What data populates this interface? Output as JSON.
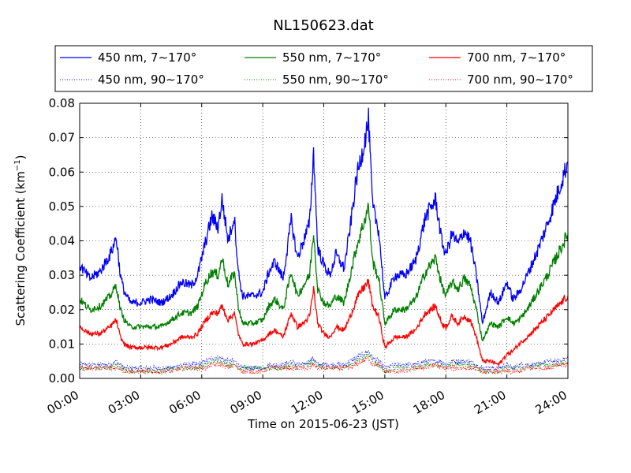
{
  "chart_data": {
    "type": "line",
    "title": "NL150623.dat",
    "xlabel": "Time on 2015-06-23 (JST)",
    "ylabel": "Scattering Coefficient (km",
    "ylabel_exp": "−1",
    "ylabel_close": ")",
    "xlim": [
      0,
      24
    ],
    "ylim": [
      0,
      0.08
    ],
    "x_unit": "hours",
    "grid": true,
    "legend_position": "top-outside",
    "x_ticks": [
      "00:00",
      "03:00",
      "06:00",
      "09:00",
      "12:00",
      "15:00",
      "18:00",
      "21:00",
      "24:00"
    ],
    "y_ticks": [
      "0.00",
      "0.01",
      "0.02",
      "0.03",
      "0.04",
      "0.05",
      "0.06",
      "0.07",
      "0.08"
    ],
    "x": [
      0,
      0.5,
      1,
      1.5,
      1.8,
      2,
      2.2,
      2.5,
      3,
      3.5,
      4,
      4.5,
      5,
      5.5,
      5.8,
      6.2,
      6.5,
      6.8,
      7,
      7.3,
      7.6,
      7.8,
      8,
      8.5,
      9,
      9.3,
      9.6,
      10,
      10.4,
      10.7,
      11,
      11.3,
      11.5,
      11.7,
      12,
      12.3,
      12.6,
      13,
      13.3,
      13.6,
      13.9,
      14.2,
      14.4,
      14.7,
      15,
      15.5,
      16,
      16.5,
      17,
      17.5,
      17.8,
      18,
      18.3,
      18.6,
      18.9,
      19.2,
      19.5,
      19.8,
      20.2,
      20.6,
      21,
      21.3,
      21.6,
      22,
      22.5,
      23,
      23.5,
      24
    ],
    "series": [
      {
        "name": "450 nm, 7∼170°",
        "color": "#0000ff",
        "style": "solid",
        "values": [
          0.033,
          0.029,
          0.031,
          0.036,
          0.041,
          0.03,
          0.025,
          0.022,
          0.022,
          0.023,
          0.022,
          0.024,
          0.028,
          0.027,
          0.03,
          0.04,
          0.047,
          0.044,
          0.052,
          0.04,
          0.047,
          0.031,
          0.024,
          0.024,
          0.025,
          0.031,
          0.034,
          0.029,
          0.046,
          0.035,
          0.04,
          0.045,
          0.066,
          0.038,
          0.033,
          0.03,
          0.036,
          0.032,
          0.044,
          0.058,
          0.066,
          0.075,
          0.05,
          0.043,
          0.023,
          0.03,
          0.03,
          0.034,
          0.047,
          0.052,
          0.04,
          0.036,
          0.042,
          0.039,
          0.043,
          0.04,
          0.03,
          0.016,
          0.025,
          0.022,
          0.028,
          0.023,
          0.025,
          0.03,
          0.037,
          0.045,
          0.054,
          0.063
        ]
      },
      {
        "name": "550 nm, 7∼170°",
        "color": "#008000",
        "style": "solid",
        "values": [
          0.023,
          0.02,
          0.021,
          0.024,
          0.027,
          0.02,
          0.017,
          0.015,
          0.015,
          0.015,
          0.015,
          0.017,
          0.019,
          0.019,
          0.021,
          0.028,
          0.031,
          0.03,
          0.035,
          0.027,
          0.031,
          0.021,
          0.016,
          0.016,
          0.017,
          0.021,
          0.023,
          0.02,
          0.031,
          0.024,
          0.027,
          0.03,
          0.043,
          0.026,
          0.022,
          0.021,
          0.024,
          0.022,
          0.03,
          0.038,
          0.044,
          0.05,
          0.034,
          0.029,
          0.016,
          0.02,
          0.02,
          0.023,
          0.031,
          0.035,
          0.027,
          0.024,
          0.028,
          0.026,
          0.029,
          0.027,
          0.02,
          0.011,
          0.016,
          0.015,
          0.018,
          0.016,
          0.017,
          0.02,
          0.025,
          0.03,
          0.036,
          0.042
        ]
      },
      {
        "name": "700 nm, 7∼170°",
        "color": "#ff0000",
        "style": "solid",
        "values": [
          0.015,
          0.013,
          0.013,
          0.015,
          0.017,
          0.012,
          0.01,
          0.009,
          0.009,
          0.009,
          0.009,
          0.01,
          0.012,
          0.012,
          0.013,
          0.017,
          0.019,
          0.019,
          0.021,
          0.017,
          0.019,
          0.013,
          0.01,
          0.01,
          0.011,
          0.013,
          0.014,
          0.012,
          0.019,
          0.015,
          0.016,
          0.018,
          0.026,
          0.016,
          0.013,
          0.012,
          0.015,
          0.014,
          0.018,
          0.023,
          0.026,
          0.028,
          0.021,
          0.018,
          0.009,
          0.012,
          0.012,
          0.014,
          0.019,
          0.021,
          0.016,
          0.015,
          0.018,
          0.016,
          0.018,
          0.017,
          0.012,
          0.005,
          0.005,
          0.004,
          0.007,
          0.008,
          0.01,
          0.012,
          0.015,
          0.018,
          0.021,
          0.024
        ]
      },
      {
        "name": "450 nm, 90∼170°",
        "color": "#0000ff",
        "style": "dotted",
        "values": [
          0.004,
          0.004,
          0.004,
          0.004,
          0.005,
          0.004,
          0.003,
          0.003,
          0.003,
          0.003,
          0.003,
          0.003,
          0.004,
          0.004,
          0.004,
          0.005,
          0.006,
          0.006,
          0.006,
          0.005,
          0.005,
          0.004,
          0.003,
          0.003,
          0.003,
          0.004,
          0.004,
          0.004,
          0.005,
          0.004,
          0.004,
          0.005,
          0.006,
          0.004,
          0.004,
          0.004,
          0.004,
          0.004,
          0.005,
          0.006,
          0.007,
          0.008,
          0.006,
          0.005,
          0.003,
          0.004,
          0.004,
          0.004,
          0.005,
          0.005,
          0.005,
          0.004,
          0.005,
          0.005,
          0.005,
          0.005,
          0.004,
          0.003,
          0.003,
          0.003,
          0.004,
          0.003,
          0.004,
          0.004,
          0.004,
          0.005,
          0.005,
          0.006
        ]
      },
      {
        "name": "550 nm, 90∼170°",
        "color": "#008000",
        "style": "dotted",
        "values": [
          0.003,
          0.003,
          0.003,
          0.003,
          0.004,
          0.003,
          0.003,
          0.002,
          0.002,
          0.002,
          0.002,
          0.003,
          0.003,
          0.003,
          0.003,
          0.004,
          0.005,
          0.005,
          0.005,
          0.004,
          0.004,
          0.003,
          0.003,
          0.003,
          0.003,
          0.003,
          0.003,
          0.003,
          0.004,
          0.003,
          0.004,
          0.004,
          0.005,
          0.004,
          0.003,
          0.003,
          0.003,
          0.003,
          0.004,
          0.005,
          0.006,
          0.007,
          0.005,
          0.004,
          0.002,
          0.003,
          0.003,
          0.003,
          0.004,
          0.004,
          0.004,
          0.003,
          0.004,
          0.004,
          0.004,
          0.004,
          0.003,
          0.002,
          0.002,
          0.002,
          0.003,
          0.003,
          0.003,
          0.003,
          0.004,
          0.004,
          0.004,
          0.005
        ]
      },
      {
        "name": "700 nm, 90∼170°",
        "color": "#ff0000",
        "style": "dotted",
        "values": [
          0.003,
          0.003,
          0.003,
          0.003,
          0.003,
          0.003,
          0.002,
          0.002,
          0.002,
          0.002,
          0.002,
          0.002,
          0.003,
          0.003,
          0.003,
          0.003,
          0.004,
          0.004,
          0.004,
          0.003,
          0.004,
          0.003,
          0.002,
          0.002,
          0.002,
          0.003,
          0.003,
          0.003,
          0.003,
          0.003,
          0.003,
          0.003,
          0.004,
          0.003,
          0.003,
          0.003,
          0.003,
          0.003,
          0.003,
          0.004,
          0.005,
          0.006,
          0.004,
          0.004,
          0.002,
          0.002,
          0.002,
          0.003,
          0.003,
          0.004,
          0.003,
          0.003,
          0.003,
          0.003,
          0.003,
          0.003,
          0.003,
          0.002,
          0.002,
          0.002,
          0.002,
          0.002,
          0.002,
          0.003,
          0.003,
          0.003,
          0.004,
          0.004
        ]
      }
    ],
    "legend_order": [
      0,
      1,
      2,
      3,
      4,
      5
    ]
  }
}
